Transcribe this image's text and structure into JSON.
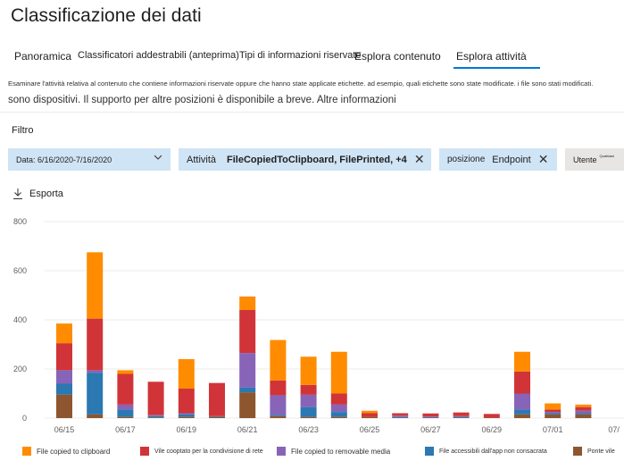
{
  "page": {
    "title": "Classificazione dei dati"
  },
  "tabs": [
    {
      "label": "Panoramica"
    },
    {
      "label": "Classificatori addestrabili (anteprima)"
    },
    {
      "label": "Tipi di informazioni riservate"
    },
    {
      "label": "Esplora contenuto"
    },
    {
      "label": "Esplora attività"
    }
  ],
  "description": {
    "line1": "Esaminare l'attività relativa al contenuto che contiene informazioni riservate oppure che hanno state applicate etichette. ad esempio, quali etichette sono state modificate. i file sono stati modificati.",
    "line2": "sono dispositivi. Il supporto per altre posizioni è disponibile a breve. Altre informazioni"
  },
  "filter": {
    "label": "Filtro",
    "date": "Data: 6/16/2020-7/16/2020",
    "activity_label": "Attività",
    "activity_value": "FileCopiedToClipboard, FilePrinted, +4",
    "location_label": "posizione",
    "location_value": "Endpoint",
    "user_label": "Utente",
    "user_sup": "Qualsiasi"
  },
  "toolbar": {
    "export_label": "Esporta"
  },
  "colors": {
    "clipboard": "#ff8c00",
    "shared": "#d13438",
    "removable": "#8764b8",
    "unallowed": "#2b78b3",
    "network": "#8e562e",
    "accent": "#0078d4"
  },
  "chart_data": {
    "type": "bar",
    "stacked": true,
    "ylim": [
      0,
      800
    ],
    "yticks": [
      0,
      200,
      400,
      600,
      800
    ],
    "categories": [
      "06/15",
      "06/16",
      "06/17",
      "06/18",
      "06/19",
      "06/20",
      "06/21",
      "06/22",
      "06/23",
      "06/24",
      "06/25",
      "06/26",
      "06/27",
      "06/28",
      "06/29",
      "06/30",
      "07/01",
      "07/02"
    ],
    "xtick_labels": [
      "06/15",
      "06/17",
      "06/19",
      "06/21",
      "06/23",
      "06/25",
      "06/27",
      "06/29",
      "07/01",
      "07/"
    ],
    "series": [
      {
        "name": "Ponte vile",
        "key": "network",
        "values": [
          95,
          15,
          5,
          3,
          5,
          5,
          105,
          8,
          5,
          5,
          5,
          2,
          2,
          2,
          2,
          15,
          15,
          15
        ]
      },
      {
        "name": "File accessibili dall'app non consacrata",
        "key": "unallowed",
        "values": [
          45,
          170,
          30,
          5,
          10,
          3,
          20,
          5,
          40,
          20,
          0,
          3,
          2,
          3,
          0,
          20,
          5,
          5
        ]
      },
      {
        "name": "File copied to removable media",
        "key": "removable",
        "values": [
          55,
          10,
          20,
          5,
          5,
          0,
          140,
          80,
          50,
          30,
          0,
          5,
          3,
          3,
          0,
          65,
          5,
          10
        ]
      },
      {
        "name": "Vile cooptato per la condivisione di rete",
        "key": "shared",
        "values": [
          110,
          210,
          125,
          135,
          100,
          135,
          175,
          60,
          40,
          45,
          15,
          10,
          12,
          15,
          15,
          90,
          10,
          15
        ]
      },
      {
        "name": "File copied to clipboard",
        "key": "clipboard",
        "values": [
          80,
          270,
          15,
          0,
          120,
          0,
          55,
          165,
          115,
          170,
          10,
          0,
          0,
          0,
          0,
          80,
          25,
          10
        ]
      }
    ]
  }
}
